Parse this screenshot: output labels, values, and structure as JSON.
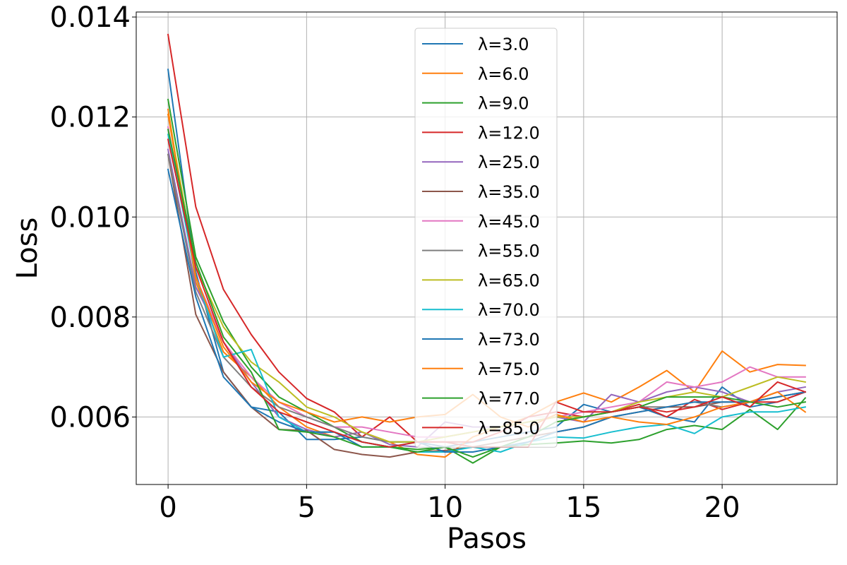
{
  "chart_data": {
    "type": "line",
    "title": "",
    "xlabel": "Pasos",
    "ylabel": "Loss",
    "xlim": [
      -1.15,
      24.15
    ],
    "ylim": [
      0.00465,
      0.0141
    ],
    "xticks": [
      0,
      5,
      10,
      15,
      20
    ],
    "xtick_labels": [
      "0",
      "5",
      "10",
      "15",
      "20"
    ],
    "yticks": [
      0.006,
      0.008,
      0.01,
      0.012,
      0.014
    ],
    "ytick_labels": [
      "0.006",
      "0.008",
      "0.010",
      "0.012",
      "0.014"
    ],
    "grid": true,
    "legend_position": "top-center",
    "x": [
      0,
      1,
      2,
      3,
      4,
      5,
      6,
      7,
      8,
      9,
      10,
      11,
      12,
      13,
      14,
      15,
      16,
      17,
      18,
      19,
      20,
      21,
      22,
      23
    ],
    "series": [
      {
        "name": "λ=3.0",
        "color": "#1f77b4",
        "values": [
          0.01295,
          0.0089,
          0.0069,
          0.0062,
          0.0061,
          0.00555,
          0.00555,
          0.0056,
          0.0055,
          0.0055,
          0.0054,
          0.0055,
          0.0056,
          0.0057,
          0.0058,
          0.00625,
          0.0061,
          0.0062,
          0.006,
          0.0059,
          0.0066,
          0.0062,
          0.0063,
          0.0065
        ]
      },
      {
        "name": "λ=6.0",
        "color": "#ff7f0e",
        "values": [
          0.01215,
          0.0087,
          0.0073,
          0.0068,
          0.0062,
          0.0058,
          0.0056,
          0.0057,
          0.0055,
          0.00525,
          0.0052,
          0.0056,
          0.0058,
          0.006,
          0.0063,
          0.00648,
          0.0063,
          0.0066,
          0.00693,
          0.0065,
          0.00732,
          0.0069,
          0.00705,
          0.00703
        ]
      },
      {
        "name": "λ=9.0",
        "color": "#2ca02c",
        "values": [
          0.01235,
          0.0092,
          0.0079,
          0.007,
          0.0064,
          0.0061,
          0.0058,
          0.0055,
          0.0054,
          0.00535,
          0.0054,
          0.00508,
          0.0054,
          0.00545,
          0.00548,
          0.00552,
          0.00548,
          0.00555,
          0.00575,
          0.00583,
          0.00575,
          0.00615,
          0.00575,
          0.00638
        ]
      },
      {
        "name": "λ=12.0",
        "color": "#d62728",
        "values": [
          0.01365,
          0.0102,
          0.00855,
          0.00765,
          0.0069,
          0.00637,
          0.0061,
          0.0056,
          0.006,
          0.0055,
          0.0055,
          0.0055,
          0.0057,
          0.006,
          0.0061,
          0.006,
          0.0061,
          0.00625,
          0.006,
          0.00635,
          0.00615,
          0.0063,
          0.0063,
          0.0065
        ]
      },
      {
        "name": "λ=25.0",
        "color": "#9467bd",
        "values": [
          0.01135,
          0.0086,
          0.0075,
          0.0067,
          0.006,
          0.00575,
          0.0056,
          0.0057,
          0.00545,
          0.0054,
          0.0059,
          0.0058,
          0.0058,
          0.0059,
          0.006,
          0.0059,
          0.00645,
          0.0063,
          0.0065,
          0.0066,
          0.0065,
          0.0063,
          0.0065,
          0.0066
        ]
      },
      {
        "name": "λ=35.0",
        "color": "#8c564b",
        "values": [
          0.01125,
          0.00805,
          0.0069,
          0.0062,
          0.00575,
          0.00573,
          0.00535,
          0.00525,
          0.0052,
          0.0053,
          0.00533,
          0.0054,
          0.0055,
          0.0056,
          0.0057,
          0.0058,
          0.006,
          0.0061,
          0.0062,
          0.0062,
          0.0063,
          0.0063,
          0.0064,
          0.0065
        ]
      },
      {
        "name": "λ=45.0",
        "color": "#e377c2",
        "values": [
          0.0118,
          0.0088,
          0.0075,
          0.0068,
          0.0063,
          0.006,
          0.0058,
          0.0058,
          0.0057,
          0.0056,
          0.0056,
          0.0057,
          0.0058,
          0.0059,
          0.006,
          0.0061,
          0.0062,
          0.0063,
          0.0067,
          0.0066,
          0.0067,
          0.007,
          0.0068,
          0.0068
        ]
      },
      {
        "name": "λ=55.0",
        "color": "#7f7f7f",
        "values": [
          0.01125,
          0.0085,
          0.0072,
          0.0066,
          0.0062,
          0.006,
          0.0058,
          0.0056,
          0.0055,
          0.0055,
          0.0056,
          0.0057,
          0.0058,
          0.0059,
          0.006,
          0.006,
          0.0061,
          0.0062,
          0.0062,
          0.0063,
          0.0062,
          0.0063,
          0.0064,
          0.0065
        ]
      },
      {
        "name": "λ=65.0",
        "color": "#bcbd22",
        "values": [
          0.01205,
          0.009,
          0.0078,
          0.0071,
          0.0067,
          0.0062,
          0.006,
          0.0057,
          0.0055,
          0.0055,
          0.0056,
          0.0057,
          0.0058,
          0.0059,
          0.006,
          0.006,
          0.0061,
          0.0063,
          0.0064,
          0.0065,
          0.0064,
          0.0066,
          0.0068,
          0.0067
        ]
      },
      {
        "name": "λ=70.0",
        "color": "#17becf",
        "values": [
          0.01165,
          0.0088,
          0.0072,
          0.00735,
          0.006,
          0.0057,
          0.0057,
          0.0055,
          0.0054,
          0.0053,
          0.0053,
          0.0054,
          0.0053,
          0.0055,
          0.0056,
          0.00558,
          0.0057,
          0.0058,
          0.00585,
          0.00567,
          0.006,
          0.0061,
          0.0061,
          0.0062
        ]
      },
      {
        "name": "λ=73.0",
        "color": "#1f77b4",
        "values": [
          0.01095,
          0.0084,
          0.0068,
          0.0062,
          0.0059,
          0.0057,
          0.0057,
          0.0054,
          0.0054,
          0.0055,
          0.0053,
          0.0053,
          0.0054,
          0.0055,
          0.0057,
          0.0058,
          0.006,
          0.0061,
          0.0062,
          0.0063,
          0.0063,
          0.0063,
          0.0064,
          0.0065
        ]
      },
      {
        "name": "λ=75.0",
        "color": "#ff7f0e",
        "values": [
          0.01205,
          0.0088,
          0.0074,
          0.0067,
          0.0063,
          0.0061,
          0.0059,
          0.006,
          0.0059,
          0.006,
          0.00605,
          0.00645,
          0.006,
          0.0058,
          0.00605,
          0.0059,
          0.006,
          0.0059,
          0.00585,
          0.006,
          0.0062,
          0.0063,
          0.0065,
          0.0061
        ]
      },
      {
        "name": "λ=77.0",
        "color": "#2ca02c",
        "values": [
          0.01175,
          0.0091,
          0.0076,
          0.0069,
          0.00575,
          0.0057,
          0.0056,
          0.0054,
          0.0054,
          0.0053,
          0.0054,
          0.0052,
          0.0054,
          0.0056,
          0.0059,
          0.006,
          0.0061,
          0.0062,
          0.0064,
          0.0064,
          0.0064,
          0.0063,
          0.0062,
          0.0063
        ]
      },
      {
        "name": "λ=85.0",
        "color": "#d62728",
        "values": [
          0.01155,
          0.009,
          0.0075,
          0.0066,
          0.0061,
          0.0059,
          0.0057,
          0.0055,
          0.0054,
          0.0055,
          0.0055,
          0.0054,
          0.0054,
          0.0054,
          0.0063,
          0.0061,
          0.0061,
          0.0062,
          0.0061,
          0.0062,
          0.0064,
          0.0062,
          0.0067,
          0.0065
        ]
      }
    ]
  }
}
